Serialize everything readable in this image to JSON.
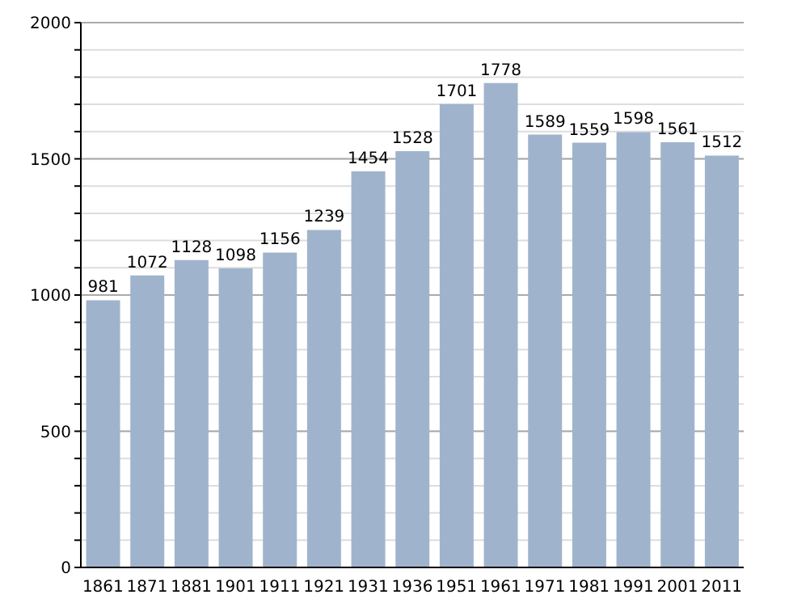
{
  "chart_data": {
    "type": "bar",
    "categories": [
      "1861",
      "1871",
      "1881",
      "1901",
      "1911",
      "1921",
      "1931",
      "1936",
      "1951",
      "1961",
      "1971",
      "1981",
      "1991",
      "2001",
      "2011"
    ],
    "values": [
      981,
      1072,
      1128,
      1098,
      1156,
      1239,
      1454,
      1528,
      1701,
      1778,
      1589,
      1559,
      1598,
      1561,
      1512
    ],
    "color": "#9fb4cc",
    "ylim": [
      0,
      2000
    ],
    "yticks": [
      0,
      {
        "value": 100,
        "label": null
      },
      {
        "value": 200,
        "label": null
      },
      {
        "value": 300,
        "label": null
      },
      {
        "value": 400,
        "label": null
      },
      500,
      {
        "value": 600,
        "label": null
      },
      {
        "value": 700,
        "label": null
      },
      {
        "value": 800,
        "label": null
      },
      {
        "value": 900,
        "label": null
      },
      1000,
      {
        "value": 1100,
        "label": null
      },
      {
        "value": 1200,
        "label": null
      },
      {
        "value": 1300,
        "label": null
      },
      {
        "value": 1400,
        "label": null
      },
      1500,
      {
        "value": 1600,
        "label": null
      },
      {
        "value": 1700,
        "label": null
      },
      {
        "value": 1800,
        "label": null
      },
      {
        "value": 1900,
        "label": null
      },
      2000
    ],
    "grid": "y",
    "data_labels": true
  }
}
